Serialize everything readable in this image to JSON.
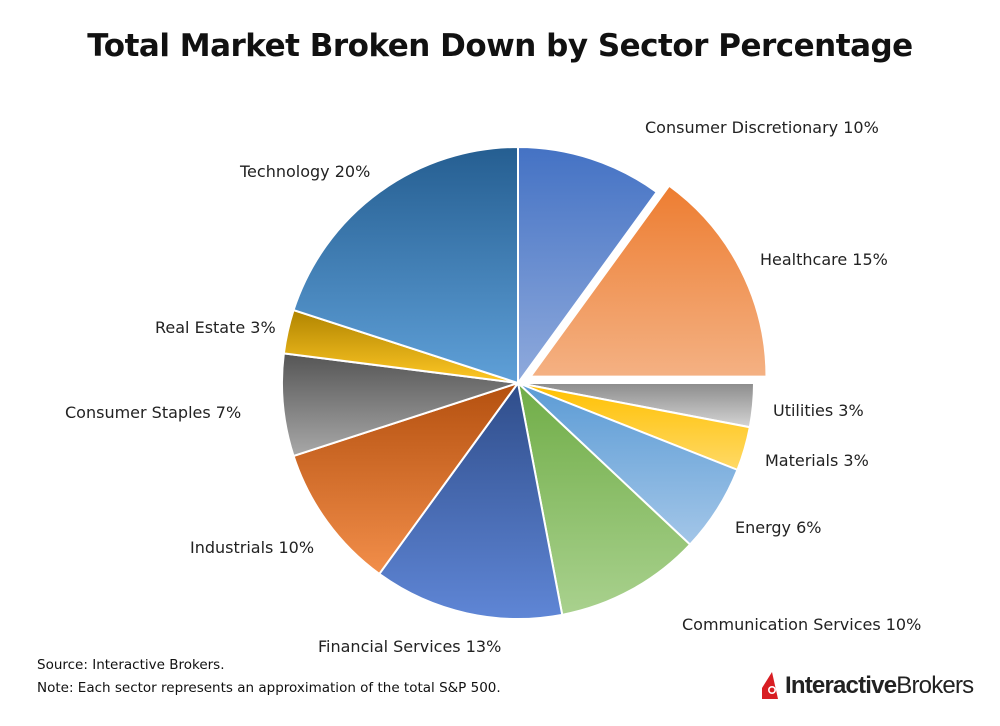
{
  "chart_data": {
    "type": "pie",
    "title": "Total Market Broken Down by Sector Percentage",
    "slices": [
      {
        "name": "Consumer Discretionary",
        "value": 10,
        "colors": [
          "#4472c4",
          "#8faadc"
        ],
        "exploded": false
      },
      {
        "name": "Healthcare",
        "value": 15,
        "colors": [
          "#ed7d31",
          "#f4b183"
        ],
        "exploded": true
      },
      {
        "name": "Utilities",
        "value": 3,
        "colors": [
          "#8c8c8c",
          "#d4d4d4"
        ],
        "exploded": false
      },
      {
        "name": "Materials",
        "value": 3,
        "colors": [
          "#ffc000",
          "#ffd966"
        ],
        "exploded": false
      },
      {
        "name": "Energy",
        "value": 6,
        "colors": [
          "#5b9bd5",
          "#a3c6e8"
        ],
        "exploded": false
      },
      {
        "name": "Communication Services",
        "value": 10,
        "colors": [
          "#70ad47",
          "#a9d18e"
        ],
        "exploded": false
      },
      {
        "name": "Financial Services",
        "value": 13,
        "colors": [
          "#2f4d8a",
          "#5f86d6"
        ],
        "exploded": false
      },
      {
        "name": "Industrials",
        "value": 10,
        "colors": [
          "#b4500f",
          "#f28e4a"
        ],
        "exploded": false
      },
      {
        "name": "Consumer Staples",
        "value": 7,
        "colors": [
          "#555555",
          "#a8a8a8"
        ],
        "exploded": false
      },
      {
        "name": "Real Estate",
        "value": 3,
        "colors": [
          "#b08400",
          "#ffc825"
        ],
        "exploded": false
      },
      {
        "name": "Technology",
        "value": 20,
        "colors": [
          "#255e91",
          "#5fa0d8"
        ],
        "exploded": false
      }
    ],
    "start_angle": "top, clockwise"
  },
  "footer": {
    "source": "Source: Interactive Brokers.",
    "note": "Note: Each sector represents an approximation of the total S&P 500."
  },
  "logo": {
    "part1": "Interactive",
    "part2": "Brokers",
    "color": "#d81e23"
  }
}
